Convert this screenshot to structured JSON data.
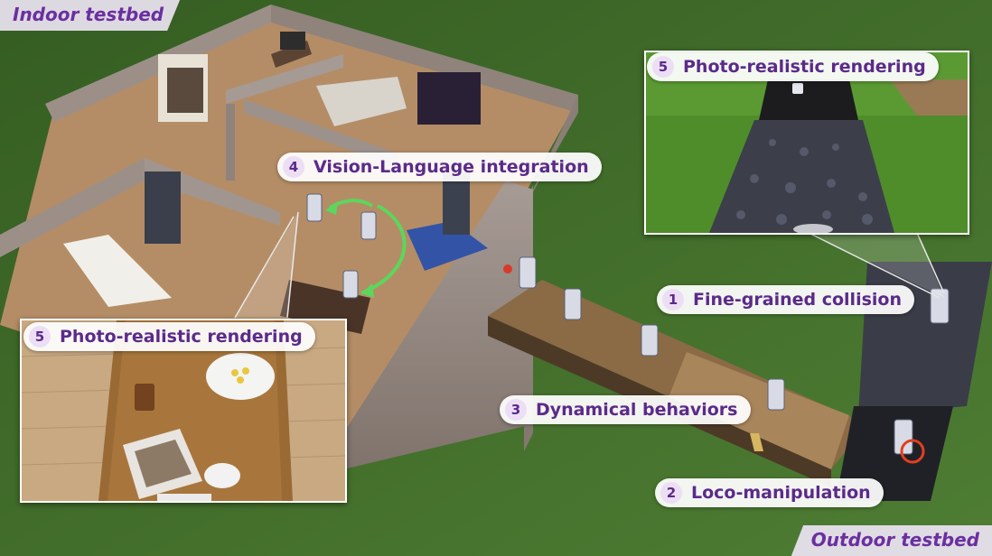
{
  "labels": {
    "indoor": "Indoor testbed",
    "outdoor": "Outdoor testbed"
  },
  "callouts": [
    {
      "num": "4",
      "text": "Vision-Language integration"
    },
    {
      "num": "5",
      "text": "Photo-realistic rendering"
    },
    {
      "num": "5",
      "text": "Photo-realistic rendering"
    },
    {
      "num": "1",
      "text": "Fine-grained collision"
    },
    {
      "num": "3",
      "text": "Dynamical behaviors"
    },
    {
      "num": "2",
      "text": "Loco-manipulation"
    }
  ],
  "colors": {
    "accent": "#6b2fa0",
    "grass": "#3f6b2a",
    "wood": "#b08a62",
    "arrow": "#5cd65c"
  }
}
